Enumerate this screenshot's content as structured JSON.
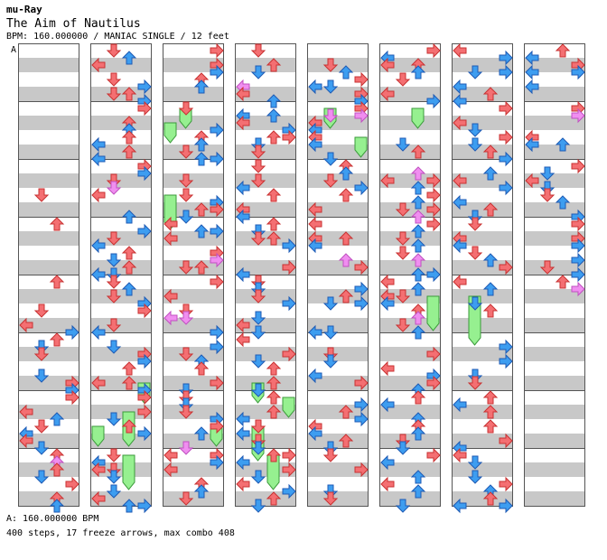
{
  "header": {
    "artist": "mu-Ray",
    "title": "The Aim of Nautilus",
    "meta": "BPM: 160.000000 / MANIAC SINGLE / 12 feet"
  },
  "footer": {
    "bpm_line": "A: 160.000000 BPM",
    "summary": "400 steps, 17 freeze arrows, max combo 408"
  },
  "chart_data": {
    "type": "step-chart",
    "section_marker": "A",
    "columns": 8,
    "measures_per_column": 8,
    "lanes": [
      "left",
      "down",
      "up",
      "right"
    ],
    "colors": {
      "quarter": "#f46f72",
      "eighth": "#3d9df0",
      "sixteenth": "#f08ef0",
      "freeze": "#96f090",
      "stripe": "#c8c8c8"
    },
    "freezes": [
      {
        "column": 1,
        "lane": 0,
        "start_beat": 26,
        "end_beat": 27
      },
      {
        "column": 1,
        "lane": 3,
        "start_beat": 23,
        "end_beat": 24
      },
      {
        "column": 1,
        "lane": 2,
        "start_beat": 25,
        "end_beat": 27
      },
      {
        "column": 1,
        "lane": 2,
        "start_beat": 28,
        "end_beat": 30
      },
      {
        "column": 2,
        "lane": 1,
        "start_beat": 4,
        "end_beat": 5
      },
      {
        "column": 2,
        "lane": 0,
        "start_beat": 5,
        "end_beat": 6
      },
      {
        "column": 2,
        "lane": 0,
        "start_beat": 10,
        "end_beat": 12
      },
      {
        "column": 2,
        "lane": 3,
        "start_beat": 26,
        "end_beat": 27
      },
      {
        "column": 3,
        "lane": 1,
        "start_beat": 23,
        "end_beat": 24
      },
      {
        "column": 3,
        "lane": 3,
        "start_beat": 24,
        "end_beat": 25
      },
      {
        "column": 3,
        "lane": 1,
        "start_beat": 26,
        "end_beat": 28
      },
      {
        "column": 3,
        "lane": 2,
        "start_beat": 28,
        "end_beat": 30
      },
      {
        "column": 4,
        "lane": 1,
        "start_beat": 4,
        "end_beat": 5
      },
      {
        "column": 4,
        "lane": 3,
        "start_beat": 6,
        "end_beat": 7
      },
      {
        "column": 5,
        "lane": 2,
        "start_beat": 4,
        "end_beat": 5
      },
      {
        "column": 5,
        "lane": 3,
        "start_beat": 17,
        "end_beat": 19
      },
      {
        "column": 6,
        "lane": 1,
        "start_beat": 17,
        "end_beat": 20
      }
    ]
  }
}
